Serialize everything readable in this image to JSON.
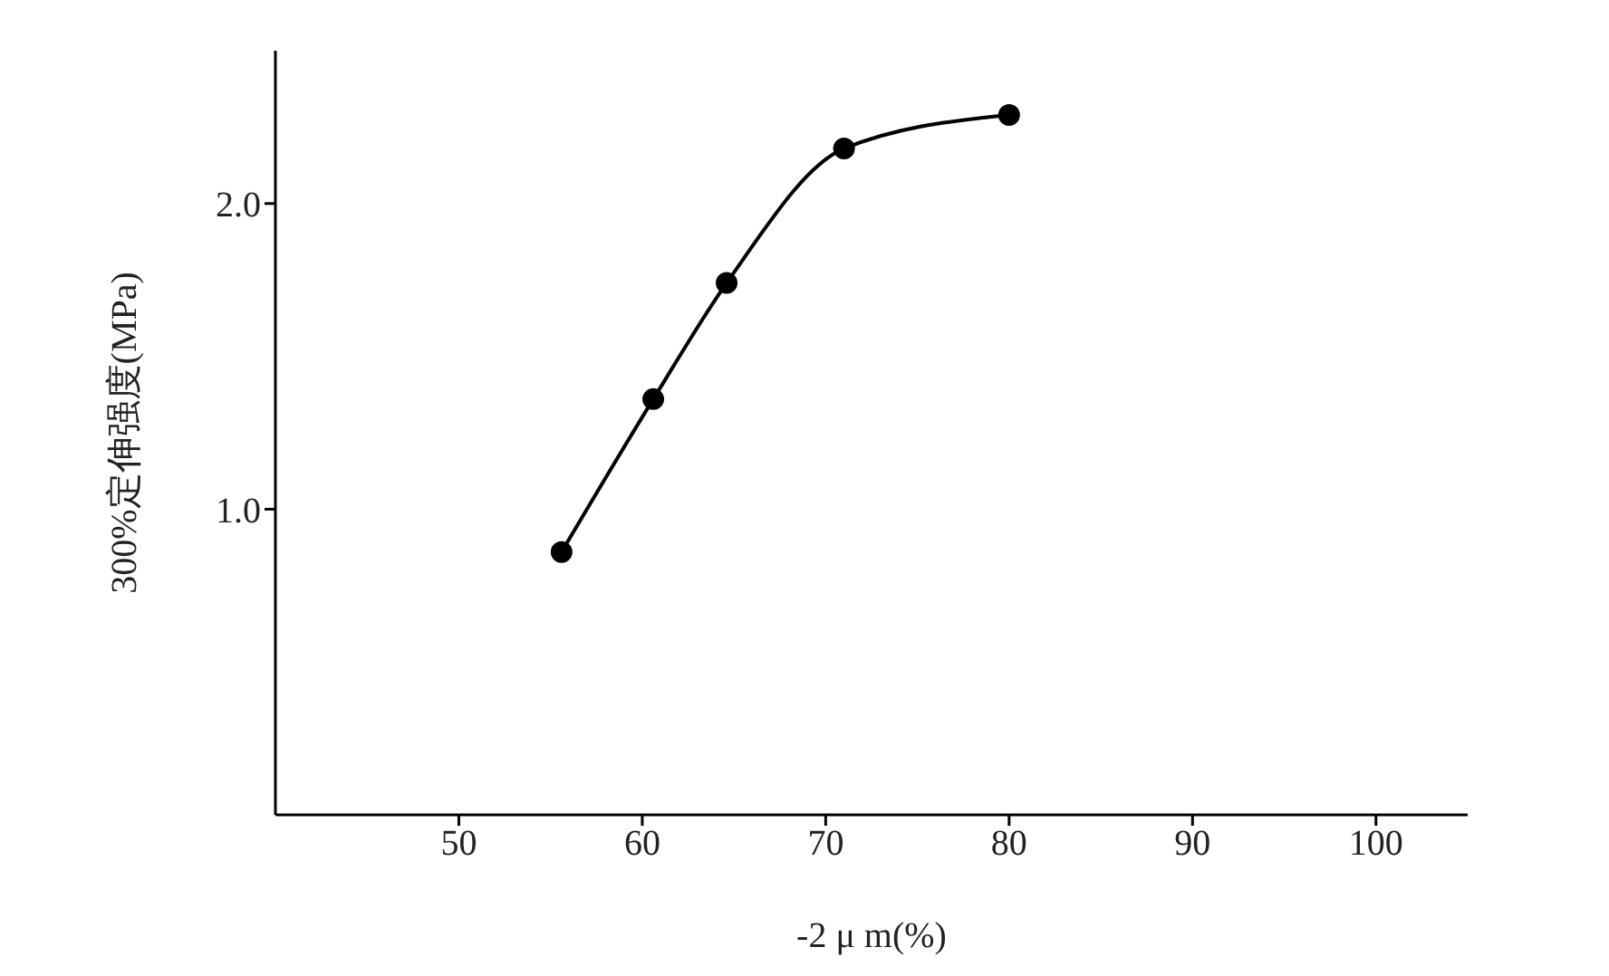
{
  "chart_data": {
    "type": "line",
    "xlabel": "-2 μ m(%)",
    "ylabel": "300%定伸强度(MPa)",
    "x": [
      55.6,
      60.6,
      64.6,
      71.0,
      80.0
    ],
    "series": [
      {
        "color": "#000000",
        "values": [
          0.86,
          1.36,
          1.74,
          2.18,
          2.29
        ]
      }
    ],
    "xlim": [
      40,
      105
    ],
    "xticks": [
      50,
      60,
      70,
      80,
      90,
      100
    ],
    "ylim": [
      0,
      2.5
    ],
    "yticks": [
      {
        "value": 1,
        "label": "1.0"
      },
      {
        "value": 2,
        "label": "2.0"
      }
    ],
    "marker": "circle",
    "line_style": "solid"
  }
}
